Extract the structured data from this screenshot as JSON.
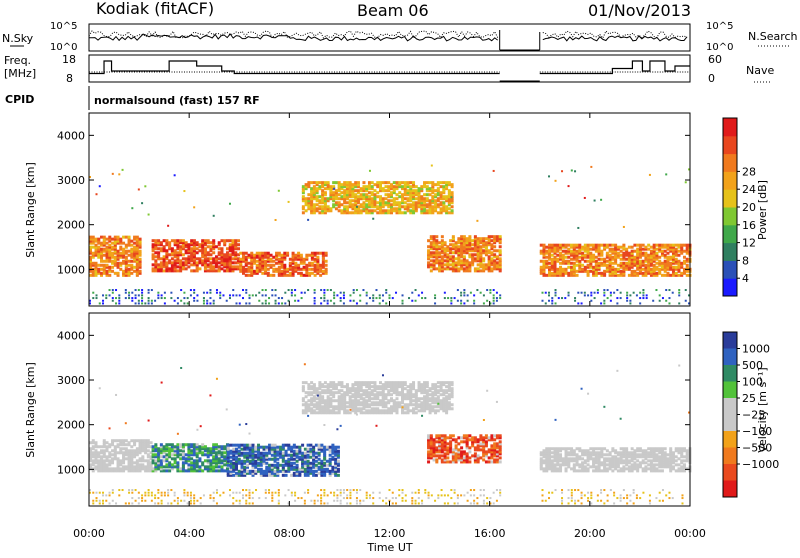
{
  "header": {
    "station": "Kodiak (fitACF)",
    "beam": "Beam 06",
    "date": "01/Nov/2013"
  },
  "summary": {
    "nsky_label": "N.Sky",
    "nsearch_label": "N.Search",
    "nsky_ticks": [
      "10^5",
      "10^0"
    ],
    "nsearch_ticks": [
      "10^5",
      "10^0"
    ],
    "freq_label_1": "Freq.",
    "freq_label_2": "[MHz]",
    "freq_ticks": [
      "18",
      "8"
    ],
    "nave_label": "Nave",
    "nave_ticks": [
      "60",
      "0"
    ],
    "cpid_label": "CPID",
    "cpid_value": "normalsound (fast) 157 RF"
  },
  "colors": {
    "power": [
      "#1a1aff",
      "#2a50b8",
      "#2f7f60",
      "#3fa84a",
      "#7fc832",
      "#e6c21a",
      "#f2a21a",
      "#f07a1e",
      "#e8461e",
      "#e01a1a"
    ],
    "velocity": [
      "#2a3c9a",
      "#2f62c0",
      "#2f8a64",
      "#52c23a",
      "#c9c9c9",
      "#c9c9c9",
      "#f2a21a",
      "#f07a1e",
      "#ea4a1e",
      "#e01a1a"
    ]
  },
  "chart_data": [
    {
      "type": "heatmap",
      "name": "power",
      "ylabel": "Slant Range [km]",
      "xlabel": "",
      "ylim": [
        180,
        4500
      ],
      "yticks": [
        "1000",
        "2000",
        "3000",
        "4000"
      ],
      "xticks": [
        "00:00",
        "04:00",
        "08:00",
        "12:00",
        "16:00",
        "20:00",
        "00:00"
      ],
      "colorbar": {
        "label": "Power [dB]",
        "ticks": [
          "4",
          "8",
          "12",
          "16",
          "20",
          "24",
          "28"
        ]
      },
      "data_gap_hours": [
        16.4,
        18.0
      ],
      "echo_regions_summary": [
        {
          "time_start": 0.0,
          "time_end": 2.0,
          "range_start": 900,
          "range_end": 1800,
          "power_db": 24
        },
        {
          "time_start": 2.5,
          "time_end": 6.0,
          "range_start": 1000,
          "range_end": 1700,
          "power_db": 28
        },
        {
          "time_start": 6.0,
          "time_end": 9.5,
          "range_start": 900,
          "range_end": 1400,
          "power_db": 26
        },
        {
          "time_start": 8.5,
          "time_end": 14.5,
          "range_start": 2300,
          "range_end": 3000,
          "power_db": 20
        },
        {
          "time_start": 13.5,
          "time_end": 16.4,
          "range_start": 1000,
          "range_end": 1800,
          "power_db": 24
        },
        {
          "time_start": 18.0,
          "time_end": 24.0,
          "range_start": 900,
          "range_end": 1600,
          "power_db": 24
        }
      ]
    },
    {
      "type": "heatmap",
      "name": "velocity",
      "ylabel": "Slant Range [km]",
      "xlabel": "Time UT",
      "ylim": [
        180,
        4500
      ],
      "yticks": [
        "1000",
        "2000",
        "3000",
        "4000"
      ],
      "xticks": [
        "00:00",
        "04:00",
        "08:00",
        "12:00",
        "16:00",
        "20:00",
        "00:00"
      ],
      "colorbar": {
        "label": "Velocity [m s⁻¹]",
        "ticks": [
          "1000",
          "500",
          "100",
          "25",
          "−25",
          "−100",
          "−500",
          "−1000"
        ]
      },
      "data_gap_hours": [
        16.4,
        18.0
      ],
      "echo_regions_summary": [
        {
          "time_start": 0.0,
          "time_end": 2.5,
          "range_start": 1000,
          "range_end": 1700,
          "velocity": 0
        },
        {
          "time_start": 2.5,
          "time_end": 5.5,
          "range_start": 1000,
          "range_end": 1600,
          "velocity": 200
        },
        {
          "time_start": 5.5,
          "time_end": 10.0,
          "range_start": 900,
          "range_end": 1600,
          "velocity": 300
        },
        {
          "time_start": 8.5,
          "time_end": 14.5,
          "range_start": 2300,
          "range_end": 3000,
          "velocity": 0
        },
        {
          "time_start": 13.5,
          "time_end": 16.4,
          "range_start": 1200,
          "range_end": 1800,
          "velocity": -300
        },
        {
          "time_start": 18.0,
          "time_end": 24.0,
          "range_start": 1000,
          "range_end": 1500,
          "velocity": 0
        }
      ]
    }
  ]
}
